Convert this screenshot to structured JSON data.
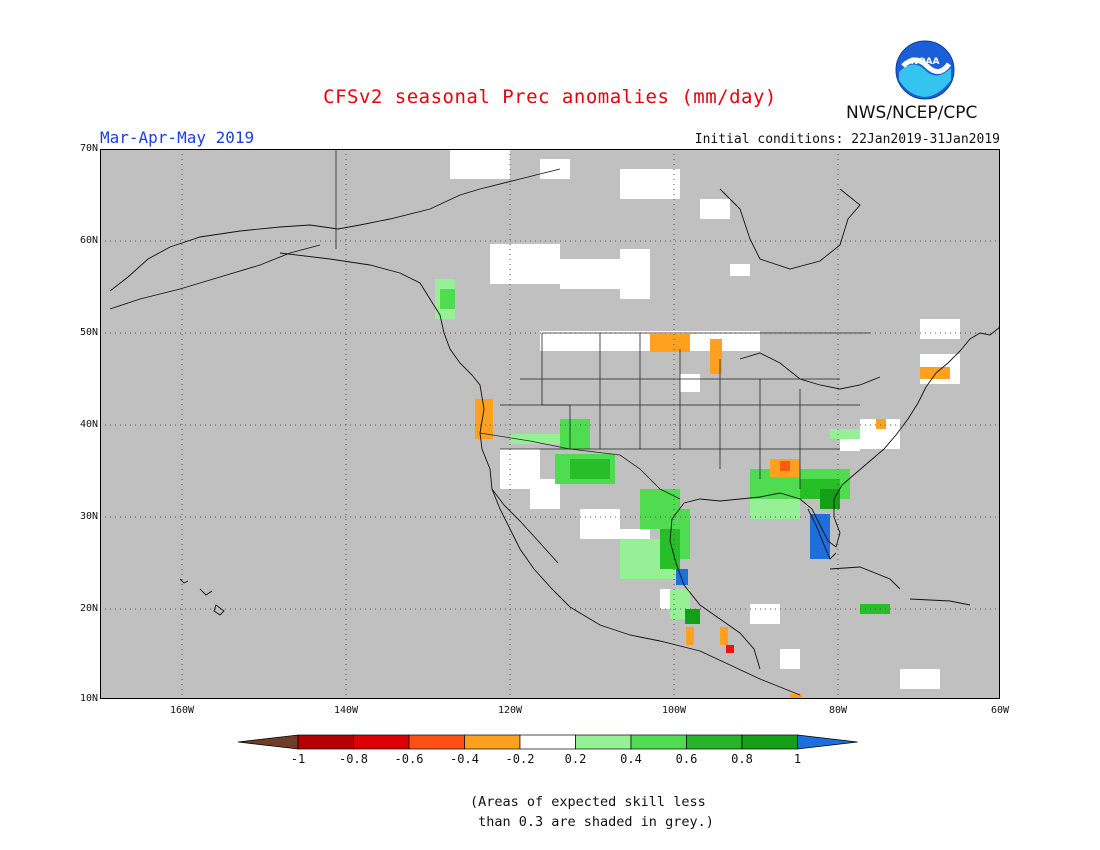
{
  "header": {
    "title": "CFSv2 seasonal Prec anomalies (mm/day)",
    "season": "Mar-Apr-May 2019",
    "initial_conditions": "Initial conditions: 22Jan2019-31Jan2019",
    "agency": "NWS/NCEP/CPC",
    "logo_text": "NOAA"
  },
  "map": {
    "lat_labels": [
      "70N",
      "60N",
      "50N",
      "40N",
      "30N",
      "20N",
      "10N"
    ],
    "lon_labels": [
      "160W",
      "140W",
      "120W",
      "100W",
      "80W",
      "60W"
    ],
    "colors": {
      "grey_mask": "#c0c0c0",
      "neutral": "#ffffff",
      "wet_0_2": "#96f096",
      "wet_0_4": "#50dc50",
      "wet_0_6": "#28be28",
      "wet_0_8": "#14a014",
      "wet_1": "#1e6edc",
      "dry_0_2": "#ffa01e",
      "dry_0_4": "#ff5a14",
      "dry_0_6": "#e61414",
      "dry_0_8": "#a00000",
      "dry_1": "#6e3c28"
    }
  },
  "legend": {
    "labels": [
      "-1",
      "-0.8",
      "-0.6",
      "-0.4",
      "-0.2",
      "0.2",
      "0.4",
      "0.6",
      "0.8",
      "1"
    ],
    "colors": [
      "#6e3c28",
      "#b40000",
      "#dc0000",
      "#ff5014",
      "#ffa01e",
      "#ffffff",
      "#96f096",
      "#50dc50",
      "#28b428",
      "#14a014",
      "#1e6edc"
    ]
  },
  "footnote": {
    "line1": "(Areas of expected skill less",
    "line2": " than 0.3 are shaded in grey.)"
  }
}
